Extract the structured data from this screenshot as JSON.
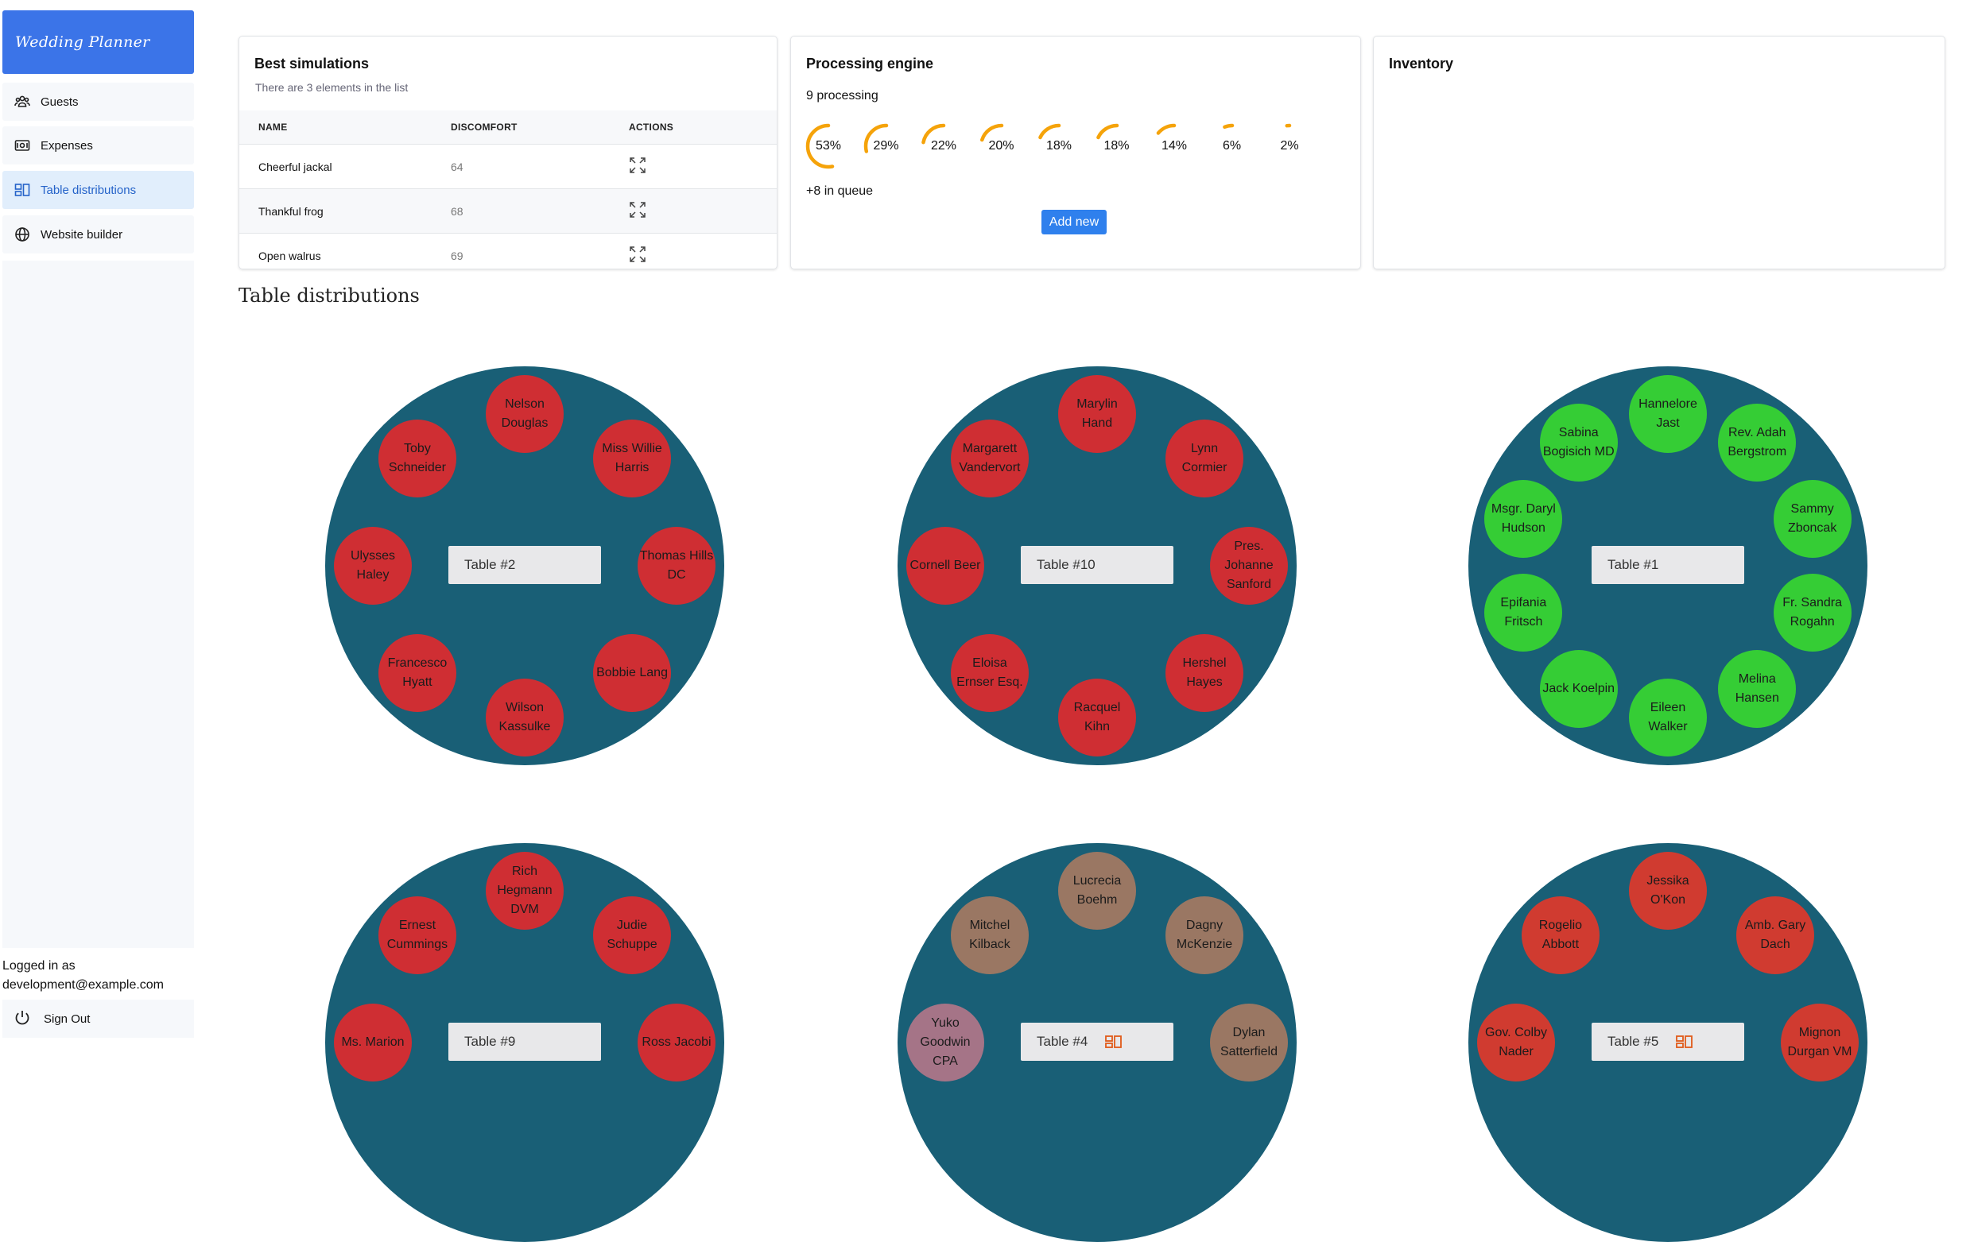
{
  "sidebar": {
    "logo": "Wedding Planner",
    "items": [
      {
        "label": "Guests",
        "icon": "users-icon"
      },
      {
        "label": "Expenses",
        "icon": "money-icon"
      },
      {
        "label": "Table distributions",
        "icon": "layout-icon",
        "active": true
      },
      {
        "label": "Website builder",
        "icon": "globe-icon"
      }
    ],
    "logged_in_label": "Logged in as",
    "user_email": "development@example.com",
    "sign_out": "Sign Out"
  },
  "simulations": {
    "title": "Best simulations",
    "subtitle": "There are 3 elements in the list",
    "columns": [
      "NAME",
      "DISCOMFORT",
      "ACTIONS"
    ],
    "rows": [
      {
        "name": "Cheerful jackal",
        "discomfort": "64"
      },
      {
        "name": "Thankful frog",
        "discomfort": "68"
      },
      {
        "name": "Open walrus",
        "discomfort": "69"
      }
    ]
  },
  "engine": {
    "title": "Processing engine",
    "processing": "9 processing",
    "gauges": [
      {
        "label": "53%",
        "value": 53
      },
      {
        "label": "29%",
        "value": 29
      },
      {
        "label": "22%",
        "value": 22
      },
      {
        "label": "20%",
        "value": 20
      },
      {
        "label": "18%",
        "value": 18
      },
      {
        "label": "18%",
        "value": 18
      },
      {
        "label": "14%",
        "value": 14
      },
      {
        "label": "6%",
        "value": 6
      },
      {
        "label": "2%",
        "value": 2
      }
    ],
    "queue": "+8 in queue",
    "add_new": "Add new",
    "gauge_color": "#f5a30a"
  },
  "inventory": {
    "title": "Inventory"
  },
  "section_title": "Table distributions",
  "colors": {
    "table": "#195f76",
    "seat_red": "#d12f2f",
    "seat_green": "#33cc33",
    "seat_brown": "#9a7760",
    "seat_mauve": "#a87585",
    "seat_orange_red": "#d03a2a",
    "accent": "#3b74e8"
  },
  "tables": [
    {
      "label": "Table #2",
      "locked": false,
      "seats": [
        {
          "name": "Nelson Douglas",
          "color": "#cf2e33"
        },
        {
          "name": "Miss Willie Harris",
          "color": "#cf2e33"
        },
        {
          "name": "Thomas Hills DC",
          "color": "#cf2e33"
        },
        {
          "name": "Bobbie Lang",
          "color": "#cf2e33"
        },
        {
          "name": "Wilson Kassulke",
          "color": "#cf2e33"
        },
        {
          "name": "Francesco Hyatt",
          "color": "#cf2e33"
        },
        {
          "name": "Ulysses Haley",
          "color": "#cf2e33"
        },
        {
          "name": "Toby Schneider",
          "color": "#cf2e33"
        }
      ]
    },
    {
      "label": "Table #10",
      "locked": false,
      "seats": [
        {
          "name": "Marylin Hand",
          "color": "#cf2e33"
        },
        {
          "name": "Lynn Cormier",
          "color": "#cf2e33"
        },
        {
          "name": "Pres. Johanne Sanford",
          "color": "#cf2e33"
        },
        {
          "name": "Hershel Hayes",
          "color": "#cf2e33"
        },
        {
          "name": "Racquel Kihn",
          "color": "#cf2e33"
        },
        {
          "name": "Eloisa Ernser Esq.",
          "color": "#cf2e33"
        },
        {
          "name": "Cornell Beer",
          "color": "#cf2e33"
        },
        {
          "name": "Margarett Vandervort",
          "color": "#cf2e33"
        }
      ]
    },
    {
      "label": "Table #1",
      "locked": false,
      "seats": [
        {
          "name": "Hannelore Jast",
          "color": "#35cd35"
        },
        {
          "name": "Rev. Adah Bergstrom",
          "color": "#35cd35"
        },
        {
          "name": "Sammy Zboncak",
          "color": "#35cd35"
        },
        {
          "name": "Fr. Sandra Rogahn",
          "color": "#35cd35"
        },
        {
          "name": "Melina Hansen",
          "color": "#35cd35"
        },
        {
          "name": "Eileen Walker",
          "color": "#35cd35"
        },
        {
          "name": "Jack Koelpin",
          "color": "#35cd35"
        },
        {
          "name": "Epifania Fritsch",
          "color": "#35cd35"
        },
        {
          "name": "Msgr. Daryl Hudson",
          "color": "#35cd35"
        },
        {
          "name": "Sabina Bogisich MD",
          "color": "#35cd35"
        }
      ]
    },
    {
      "label": "Table #9",
      "locked": false,
      "seats": [
        {
          "name": "Rich Hegmann DVM",
          "color": "#cf2e33"
        },
        {
          "name": "Judie Schuppe",
          "color": "#cf2e33"
        },
        {
          "name": "Ross Jacobi",
          "color": "#cf2e33"
        },
        {
          "name": "Ms. Marion",
          "color": "#cf2e33"
        },
        {
          "name": "Ernest Cummings",
          "color": "#cf2e33"
        }
      ]
    },
    {
      "label": "Table #4",
      "locked": true,
      "seats": [
        {
          "name": "Lucrecia Boehm",
          "color": "#9a7763"
        },
        {
          "name": "Dagny McKenzie",
          "color": "#9a7763"
        },
        {
          "name": "Dylan Satterfield",
          "color": "#9a7763"
        },
        {
          "name": "Yuko Goodwin CPA",
          "color": "#a57487"
        },
        {
          "name": "Mitchel Kilback",
          "color": "#9a7763"
        }
      ]
    },
    {
      "label": "Table #5",
      "locked": true,
      "seats": [
        {
          "name": "Jessika O'Kon",
          "color": "#d03b30"
        },
        {
          "name": "Amb. Gary Dach",
          "color": "#d03b30"
        },
        {
          "name": "Mignon Durgan VM",
          "color": "#d03b30"
        },
        {
          "name": "Gov. Colby Nader",
          "color": "#d03b30"
        },
        {
          "name": "Rogelio Abbott",
          "color": "#d03b30"
        }
      ]
    }
  ]
}
